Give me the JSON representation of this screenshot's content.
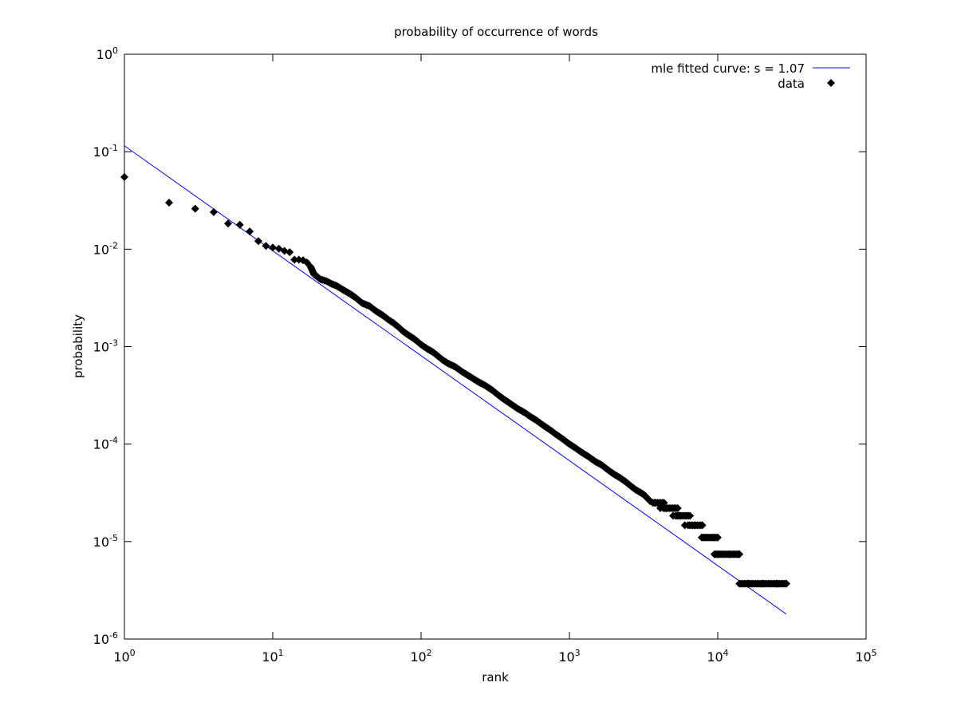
{
  "chart_data": {
    "type": "scatter",
    "title": "probability of occurrence of words",
    "xlabel": "rank",
    "ylabel": "probability",
    "xscale": "log",
    "yscale": "log",
    "xlim": [
      1,
      100000
    ],
    "ylim": [
      1e-06,
      1
    ],
    "grid": false,
    "legend_position": "top-right",
    "x_ticks": [
      {
        "base": "10",
        "exp": "0",
        "value": 1
      },
      {
        "base": "10",
        "exp": "1",
        "value": 10
      },
      {
        "base": "10",
        "exp": "2",
        "value": 100
      },
      {
        "base": "10",
        "exp": "3",
        "value": 1000
      },
      {
        "base": "10",
        "exp": "4",
        "value": 10000
      },
      {
        "base": "10",
        "exp": "5",
        "value": 100000
      }
    ],
    "y_ticks": [
      {
        "base": "10",
        "exp": "0",
        "value": 1
      },
      {
        "base": "10",
        "exp": "-1",
        "value": 0.1
      },
      {
        "base": "10",
        "exp": "-2",
        "value": 0.01
      },
      {
        "base": "10",
        "exp": "-3",
        "value": 0.001
      },
      {
        "base": "10",
        "exp": "-4",
        "value": 0.0001
      },
      {
        "base": "10",
        "exp": "-5",
        "value": 1e-05
      },
      {
        "base": "10",
        "exp": "-6",
        "value": 1e-06
      }
    ],
    "series": [
      {
        "name": "mle fitted curve: s = 1.07",
        "kind": "line",
        "color": "#0000ff",
        "x": [
          1,
          29000
        ],
        "y": [
          0.115,
          1.8e-06
        ]
      },
      {
        "name": "data",
        "kind": "scatter",
        "marker": "diamond",
        "color": "#000000",
        "points": [
          [
            1,
            0.055
          ],
          [
            2,
            0.03
          ],
          [
            3,
            0.026
          ],
          [
            4,
            0.024
          ],
          [
            5,
            0.0183
          ],
          [
            6,
            0.0178
          ],
          [
            7,
            0.0152
          ],
          [
            8,
            0.0121
          ],
          [
            9,
            0.0108
          ],
          [
            10,
            0.0104
          ],
          [
            11,
            0.0101
          ],
          [
            12,
            0.0096
          ],
          [
            13,
            0.0093
          ],
          [
            14,
            0.0078
          ],
          [
            15,
            0.0078
          ],
          [
            16,
            0.0077
          ],
          [
            17,
            0.0073
          ],
          [
            18,
            0.0066
          ],
          [
            19,
            0.0055
          ],
          [
            20,
            0.0052
          ],
          [
            21,
            0.0049
          ],
          [
            23,
            0.0047
          ],
          [
            25,
            0.0044
          ],
          [
            27,
            0.0042
          ],
          [
            30,
            0.0038
          ],
          [
            33,
            0.0035
          ],
          [
            36,
            0.0032
          ],
          [
            40,
            0.0028
          ],
          [
            45,
            0.0026
          ],
          [
            50,
            0.0023
          ],
          [
            55,
            0.0021
          ],
          [
            60,
            0.0019
          ],
          [
            65,
            0.00175
          ],
          [
            70,
            0.0016
          ],
          [
            75,
            0.00145
          ],
          [
            80,
            0.00135
          ],
          [
            90,
            0.0012
          ],
          [
            100,
            0.00105
          ],
          [
            110,
            0.00095
          ],
          [
            120,
            0.00088
          ],
          [
            130,
            0.0008
          ],
          [
            140,
            0.00073
          ],
          [
            150,
            0.00068
          ],
          [
            170,
            0.00062
          ],
          [
            190,
            0.00055
          ],
          [
            210,
            0.0005
          ],
          [
            240,
            0.00044
          ],
          [
            270,
            0.0004
          ],
          [
            300,
            0.00036
          ],
          [
            330,
            0.00032
          ],
          [
            360,
            0.00029
          ],
          [
            400,
            0.00026
          ],
          [
            450,
            0.00023
          ],
          [
            500,
            0.00021
          ],
          [
            550,
            0.00019
          ],
          [
            600,
            0.000175
          ],
          [
            650,
            0.00016
          ],
          [
            700,
            0.000148
          ],
          [
            750,
            0.000138
          ],
          [
            800,
            0.000128
          ],
          [
            900,
            0.000113
          ],
          [
            1000,
            0.0001
          ],
          [
            1100,
            9.1e-05
          ],
          [
            1200,
            8.3e-05
          ],
          [
            1350,
            7.4e-05
          ],
          [
            1500,
            6.6e-05
          ],
          [
            1650,
            6.1e-05
          ],
          [
            1800,
            5.5e-05
          ],
          [
            2000,
            4.9e-05
          ],
          [
            2200,
            4.5e-05
          ],
          [
            2400,
            4.1e-05
          ],
          [
            2600,
            3.7e-05
          ],
          [
            2800,
            3.4e-05
          ],
          [
            3000,
            3.2e-05
          ],
          [
            3200,
            3e-05
          ],
          [
            3500,
            2.6e-05
          ],
          [
            3800,
            2.5e-05
          ],
          [
            4100,
            2.2e-05
          ],
          [
            4500,
            2.2e-05
          ],
          [
            5000,
            1.84e-05
          ],
          [
            5500,
            1.84e-05
          ],
          [
            6000,
            1.47e-05
          ],
          [
            7000,
            1.47e-05
          ],
          [
            8000,
            1.1e-05
          ],
          [
            9500,
            1.1e-05
          ],
          [
            10000,
            7.4e-06
          ],
          [
            12000,
            7.4e-06
          ],
          [
            14000,
            7.4e-06
          ],
          [
            16000,
            3.7e-06
          ],
          [
            20000,
            3.7e-06
          ],
          [
            25000,
            3.7e-06
          ],
          [
            29000,
            3.7e-06
          ]
        ],
        "flat_runs": [
          {
            "x_from": 3650,
            "x_to": 4400,
            "y": 2.5e-05
          },
          {
            "x_from": 4300,
            "x_to": 5400,
            "y": 2.2e-05
          },
          {
            "x_from": 5200,
            "x_to": 6600,
            "y": 1.84e-05
          },
          {
            "x_from": 6300,
            "x_to": 8000,
            "y": 1.47e-05
          },
          {
            "x_from": 7800,
            "x_to": 10000,
            "y": 1.1e-05
          },
          {
            "x_from": 9500,
            "x_to": 14000,
            "y": 7.4e-06
          },
          {
            "x_from": 14000,
            "x_to": 29000,
            "y": 3.7e-06
          }
        ]
      }
    ]
  }
}
